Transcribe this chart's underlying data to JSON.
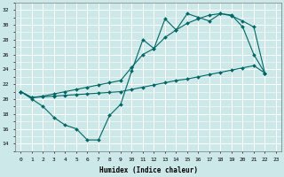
{
  "xlabel": "Humidex (Indice chaleur)",
  "xlim": [
    -0.5,
    23.5
  ],
  "ylim": [
    13.0,
    33.0
  ],
  "yticks": [
    14,
    16,
    18,
    20,
    22,
    24,
    26,
    28,
    30,
    32
  ],
  "xticks": [
    0,
    1,
    2,
    3,
    4,
    5,
    6,
    7,
    8,
    9,
    10,
    11,
    12,
    13,
    14,
    15,
    16,
    17,
    18,
    19,
    20,
    21,
    22,
    23
  ],
  "bg_color": "#cce8e8",
  "grid_color": "#ffffff",
  "line_color": "#006666",
  "line1_x": [
    0,
    1,
    2,
    3,
    4,
    5,
    6,
    7,
    8,
    9,
    10,
    11,
    12,
    13,
    14,
    15,
    16,
    17,
    18,
    19,
    20,
    21,
    22
  ],
  "line1_y": [
    21.0,
    20.0,
    19.0,
    17.5,
    16.5,
    16.0,
    14.5,
    14.5,
    17.8,
    19.3,
    23.8,
    28.0,
    26.8,
    30.8,
    29.3,
    31.5,
    31.0,
    30.5,
    31.5,
    31.3,
    29.7,
    26.0,
    23.5
  ],
  "line2_x": [
    0,
    1,
    2,
    3,
    4,
    5,
    6,
    7,
    8,
    9,
    10,
    11,
    12,
    13,
    14,
    15,
    16,
    17,
    18,
    19,
    20,
    21,
    22
  ],
  "line2_y": [
    21.0,
    20.2,
    20.4,
    20.7,
    21.0,
    21.3,
    21.6,
    21.9,
    22.2,
    22.5,
    24.3,
    26.0,
    26.8,
    28.3,
    29.3,
    30.2,
    30.8,
    31.3,
    31.5,
    31.2,
    30.5,
    29.7,
    23.5
  ],
  "line3_x": [
    0,
    1,
    2,
    3,
    4,
    5,
    6,
    7,
    8,
    9,
    10,
    11,
    12,
    13,
    14,
    15,
    16,
    17,
    18,
    19,
    20,
    21,
    22
  ],
  "line3_y": [
    21.0,
    20.2,
    20.3,
    20.4,
    20.5,
    20.6,
    20.7,
    20.8,
    20.9,
    21.0,
    21.3,
    21.6,
    21.9,
    22.2,
    22.5,
    22.7,
    23.0,
    23.3,
    23.6,
    23.9,
    24.2,
    24.5,
    23.5
  ]
}
